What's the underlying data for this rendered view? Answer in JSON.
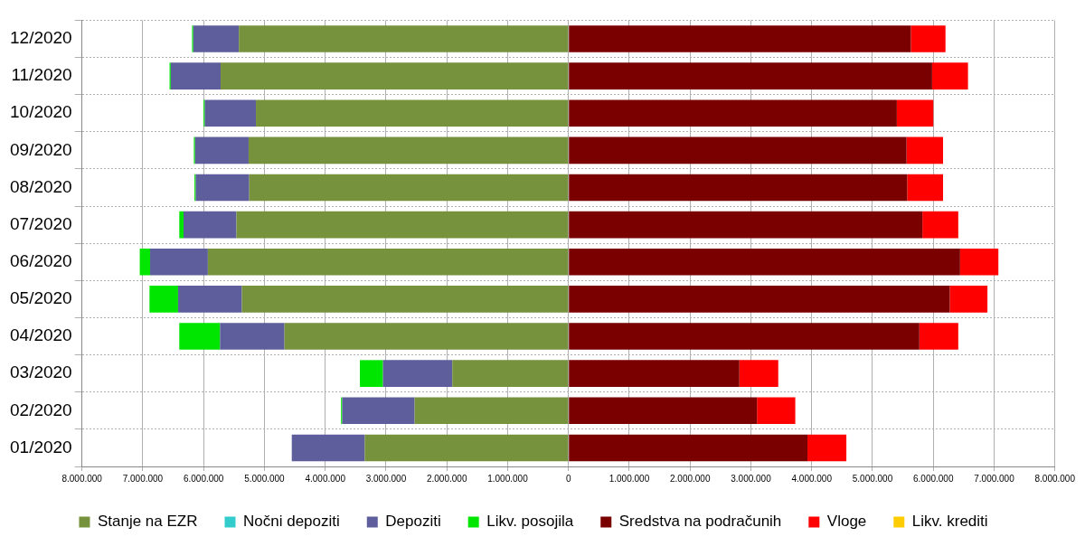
{
  "chart_data": {
    "type": "bar",
    "orientation": "horizontal",
    "stacked": true,
    "categories": [
      "12/2020",
      "11/2020",
      "10/2020",
      "09/2020",
      "08/2020",
      "07/2020",
      "06/2020",
      "05/2020",
      "04/2020",
      "03/2020",
      "02/2020",
      "01/2020"
    ],
    "series": [
      {
        "name": "Stanje na EZR",
        "color": "#76923c",
        "values": [
          -5420000,
          -5720000,
          -5140000,
          -5260000,
          -5250000,
          -5460000,
          -5930000,
          -5370000,
          -4670000,
          -1910000,
          -2530000,
          -3350000
        ]
      },
      {
        "name": "Nočni depoziti",
        "color": "#33cccc",
        "values": [
          0,
          0,
          0,
          0,
          0,
          0,
          0,
          0,
          0,
          0,
          0,
          0
        ]
      },
      {
        "name": "Depoziti",
        "color": "#5e5e9c",
        "values": [
          -750000,
          -820000,
          -840000,
          -880000,
          -880000,
          -870000,
          -950000,
          -1050000,
          -1060000,
          -1140000,
          -1190000,
          -1200000
        ]
      },
      {
        "name": "Likv. posojila",
        "color": "#00e600",
        "values": [
          -20000,
          -20000,
          -20000,
          -20000,
          -20000,
          -70000,
          -170000,
          -470000,
          -670000,
          -380000,
          -20000,
          0
        ]
      },
      {
        "name": "Sredstva na podračunih",
        "color": "#7a0000",
        "values": [
          5630000,
          5980000,
          5400000,
          5560000,
          5570000,
          5820000,
          6440000,
          6270000,
          5770000,
          2810000,
          3100000,
          3930000
        ]
      },
      {
        "name": "Vloge",
        "color": "#ff0000",
        "values": [
          570000,
          590000,
          600000,
          600000,
          590000,
          590000,
          630000,
          620000,
          640000,
          640000,
          630000,
          640000
        ]
      },
      {
        "name": "Likv. krediti",
        "color": "#ffcc00",
        "values": [
          0,
          0,
          0,
          0,
          0,
          0,
          0,
          0,
          0,
          0,
          0,
          0
        ]
      }
    ],
    "xlim": [
      -8000000,
      8000000
    ],
    "xticks": [
      {
        "value": -8000000,
        "label": "8.000.000"
      },
      {
        "value": -7000000,
        "label": "7.000.000"
      },
      {
        "value": -6000000,
        "label": "6.000.000"
      },
      {
        "value": -5000000,
        "label": "5.000.000"
      },
      {
        "value": -4000000,
        "label": "4.000.000"
      },
      {
        "value": -3000000,
        "label": "3.000.000"
      },
      {
        "value": -2000000,
        "label": "2.000.000"
      },
      {
        "value": -1000000,
        "label": "1.000.000"
      },
      0,
      {
        "value": 1000000,
        "label": "1.000.000"
      },
      {
        "value": 2000000,
        "label": "2.000.000"
      },
      {
        "value": 3000000,
        "label": "3.000.000"
      },
      {
        "value": 4000000,
        "label": "4.000.000"
      },
      {
        "value": 5000000,
        "label": "5.000.000"
      },
      {
        "value": 6000000,
        "label": "6.000.000"
      },
      {
        "value": 7000000,
        "label": "7.000.000"
      },
      {
        "value": 8000000,
        "label": "8.000.000"
      }
    ],
    "grid": true,
    "legend": "bottom"
  }
}
